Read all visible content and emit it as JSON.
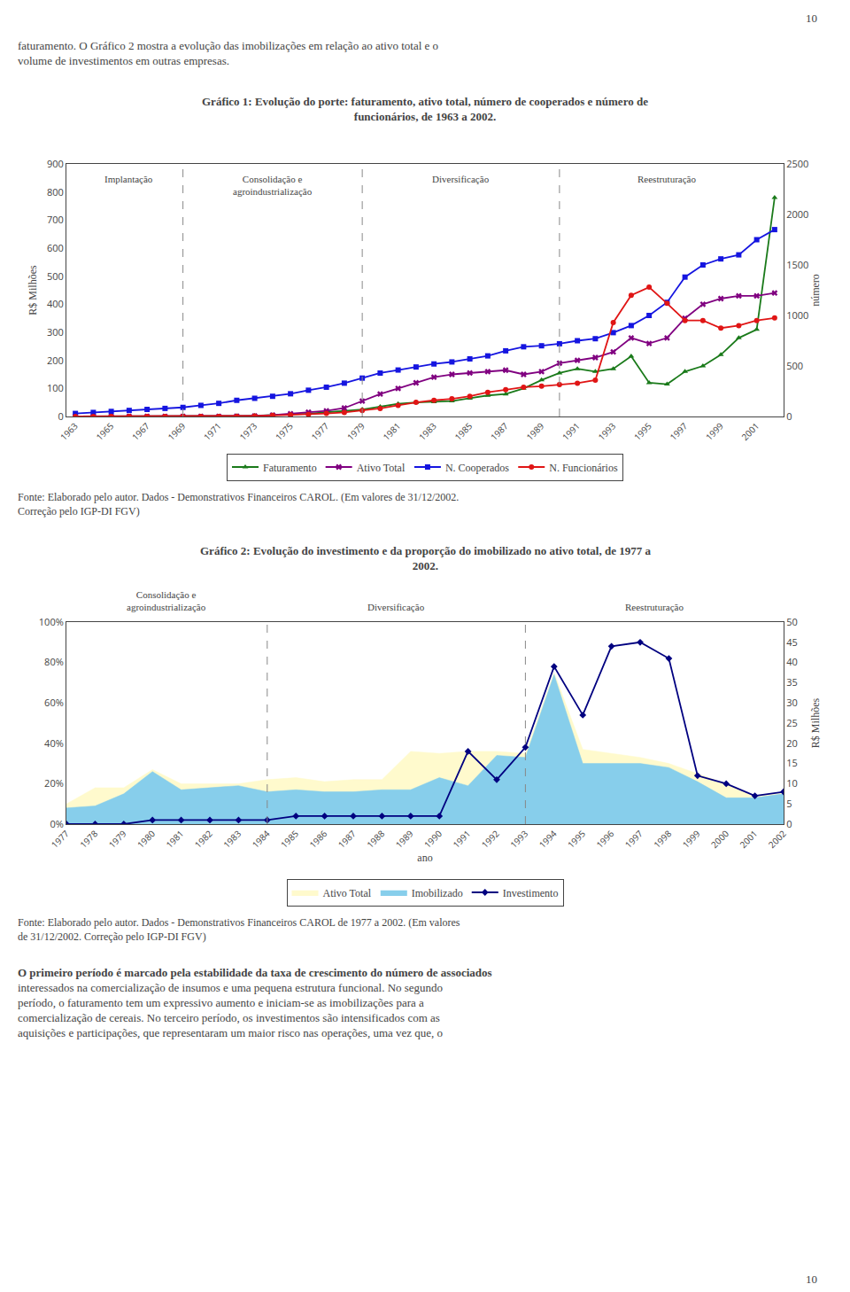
{
  "page_number": "10",
  "intro_text": "faturamento. O Gráfico 2 mostra a evolução das imobilizações em relação ao ativo total e o\nvolume de investimentos em outras empresas.",
  "chart_data": [
    {
      "type": "line",
      "title": "Gráfico 1: Evolução do porte: faturamento, ativo total, número de cooperados e número de\nfuncionários, de 1963 a 2002.",
      "x": [
        1963,
        1964,
        1965,
        1966,
        1967,
        1968,
        1969,
        1970,
        1971,
        1972,
        1973,
        1974,
        1975,
        1976,
        1977,
        1978,
        1979,
        1980,
        1981,
        1982,
        1983,
        1984,
        1985,
        1986,
        1987,
        1988,
        1989,
        1990,
        1991,
        1992,
        1993,
        1994,
        1995,
        1996,
        1997,
        1998,
        1999,
        2000,
        2001,
        2002
      ],
      "series": [
        {
          "name": "Faturamento",
          "color": "#1a7a1a",
          "marker": "triangle-up",
          "values": [
            0,
            0,
            0,
            0,
            0,
            0,
            0,
            0,
            1,
            2,
            3,
            5,
            8,
            10,
            15,
            20,
            25,
            35,
            45,
            50,
            52,
            55,
            65,
            75,
            80,
            100,
            130,
            155,
            170,
            160,
            170,
            215,
            120,
            115,
            160,
            180,
            220,
            280,
            310,
            780
          ]
        },
        {
          "name": "Ativo Total",
          "color": "#800080",
          "marker": "x",
          "values": [
            0,
            0,
            0,
            0,
            0,
            0,
            0,
            0,
            0,
            1,
            2,
            5,
            10,
            15,
            20,
            30,
            55,
            80,
            100,
            120,
            140,
            150,
            155,
            160,
            165,
            150,
            160,
            190,
            200,
            210,
            230,
            280,
            260,
            280,
            350,
            400,
            420,
            430,
            430,
            440
          ]
        },
        {
          "name": "N. Cooperados",
          "color": "#1515e0",
          "marker": "square",
          "axis": "y2",
          "values": [
            30,
            40,
            50,
            60,
            70,
            80,
            90,
            110,
            130,
            160,
            180,
            200,
            225,
            260,
            290,
            330,
            380,
            430,
            460,
            490,
            520,
            540,
            570,
            600,
            650,
            690,
            700,
            720,
            750,
            770,
            830,
            900,
            1000,
            1130,
            1380,
            1500,
            1560,
            1600,
            1750,
            1850
          ]
        },
        {
          "name": "N. Funcionários",
          "color": "#e01515",
          "marker": "circle",
          "axis": "y2",
          "values": [
            0,
            0,
            0,
            0,
            0,
            0,
            0,
            0,
            0,
            0,
            5,
            10,
            15,
            20,
            30,
            40,
            60,
            80,
            110,
            140,
            160,
            175,
            200,
            240,
            265,
            290,
            300,
            315,
            330,
            360,
            930,
            1200,
            1280,
            1120,
            950,
            950,
            875,
            900,
            950,
            975
          ]
        }
      ],
      "xlim": [
        1962.5,
        2002.5
      ],
      "xticks": [
        1963,
        1965,
        1967,
        1969,
        1971,
        1973,
        1975,
        1977,
        1979,
        1981,
        1983,
        1985,
        1987,
        1989,
        1991,
        1993,
        1995,
        1997,
        1999,
        2001
      ],
      "ylabel": "R$ Milhões",
      "ylim": [
        0,
        900
      ],
      "yticks": [
        0,
        100,
        200,
        300,
        400,
        500,
        600,
        700,
        800,
        900
      ],
      "y2label": "número",
      "y2lim": [
        0,
        2500
      ],
      "y2ticks": [
        0,
        500,
        1000,
        1500,
        2000,
        2500
      ],
      "vlines": [
        1969,
        1979,
        1990
      ],
      "annotations": [
        {
          "x": 1966,
          "text": "Implantação"
        },
        {
          "x": 1974,
          "text": "Consolidação e\nagroindustrialização"
        },
        {
          "x": 1984.5,
          "text": "Diversificação"
        },
        {
          "x": 1996,
          "text": "Reestruturação"
        }
      ],
      "grid": false,
      "legend": "bottom",
      "source": "Fonte: Elaborado pelo autor. Dados - Demonstrativos Financeiros CAROL. (Em valores de 31/12/2002.\nCorreção pelo IGP-DI FGV)"
    },
    {
      "type": "line",
      "title": "Gráfico 2: Evolução do investimento e da proporção do imobilizado no ativo total, de 1977 a\n2002.",
      "x": [
        1977,
        1978,
        1979,
        1980,
        1981,
        1982,
        1983,
        1984,
        1985,
        1986,
        1987,
        1988,
        1989,
        1990,
        1991,
        1992,
        1993,
        1994,
        1995,
        1996,
        1997,
        1998,
        1999,
        2000,
        2001,
        2002
      ],
      "series": [
        {
          "name": "Ativo Total",
          "type": "area",
          "color": "#fffacd",
          "values": [
            10,
            18,
            18,
            27,
            20,
            20,
            20,
            22,
            23,
            21,
            22,
            22,
            36,
            35,
            36,
            36,
            35,
            75,
            37,
            35,
            33,
            30,
            25,
            20,
            14,
            16
          ]
        },
        {
          "name": "Imobilizado",
          "type": "area",
          "color": "#87ceeb",
          "values": [
            8,
            9,
            15,
            26,
            17,
            18,
            19,
            16,
            17,
            16,
            16,
            17,
            17,
            23,
            19,
            34,
            33,
            74,
            30,
            30,
            30,
            28,
            21,
            13,
            13,
            15
          ]
        },
        {
          "name": "Investimento",
          "type": "line",
          "color": "#000080",
          "marker": "diamond",
          "axis": "y2",
          "values": [
            0,
            0,
            0,
            1,
            1,
            1,
            1,
            1,
            2,
            2,
            2,
            2,
            2,
            2,
            18,
            11,
            19,
            39,
            27,
            44,
            45,
            41,
            12,
            10,
            7,
            8
          ]
        }
      ],
      "xlabel": "ano",
      "xlim": [
        1977,
        2002
      ],
      "xticks": [
        1977,
        1978,
        1979,
        1980,
        1981,
        1982,
        1983,
        1984,
        1985,
        1986,
        1987,
        1988,
        1989,
        1990,
        1991,
        1992,
        1993,
        1994,
        1995,
        1996,
        1997,
        1998,
        1999,
        2000,
        2001,
        2002
      ],
      "ylim": [
        0,
        100
      ],
      "yticks": [
        {
          "value": 0,
          "label": "0%"
        },
        {
          "value": 20,
          "label": "20%"
        },
        {
          "value": 40,
          "label": "40%"
        },
        {
          "value": 60,
          "label": "60%"
        },
        {
          "value": 80,
          "label": "80%"
        },
        {
          "value": 100,
          "label": "100%"
        }
      ],
      "y2label": "R$ Milhões",
      "y2lim": [
        0,
        50
      ],
      "y2ticks": [
        0,
        5,
        10,
        15,
        20,
        25,
        30,
        35,
        40,
        45,
        50
      ],
      "vlines": [
        1984,
        1993
      ],
      "annotations": [
        {
          "x": 1980.5,
          "text": "Consolidação e\nagroindustrialização"
        },
        {
          "x": 1988.5,
          "text": "Diversificação"
        },
        {
          "x": 1997.5,
          "text": "Reestruturação"
        }
      ],
      "grid": false,
      "legend": "bottom",
      "source": "Fonte: Elaborado pelo autor. Dados - Demonstrativos Financeiros CAROL de 1977 a 2002. (Em valores\nde 31/12/2002. Correção pelo IGP-DI FGV)"
    }
  ],
  "body_text": [
    "O primeiro período é marcado pela estabilidade da taxa de crescimento do número de associados",
    "interessados na comercialização de insumos e uma pequena estrutura funcional. No segundo",
    "período, o faturamento tem um expressivo aumento e iniciam-se as imobilizações para a",
    "comercialização de cereais. No terceiro período, os investimentos são intensificados com as",
    "aquisições e participações, que representaram um maior risco nas operações, uma vez que, o"
  ],
  "footer": "10"
}
